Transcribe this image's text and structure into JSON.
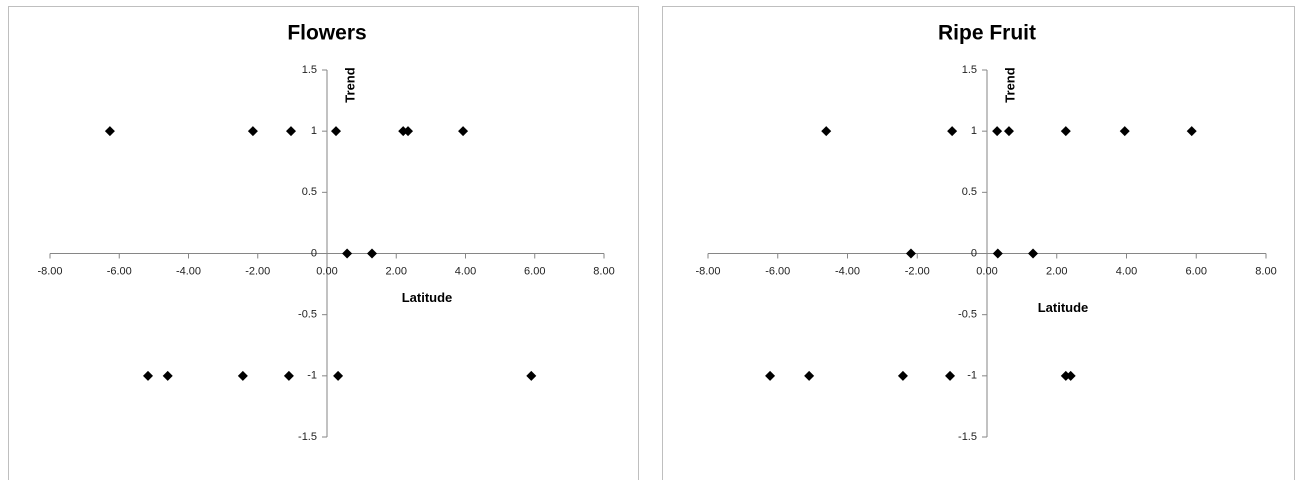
{
  "chart_data": [
    {
      "type": "scatter",
      "title": "Flowers",
      "x_label": "Latitude",
      "y_label": "Trend",
      "color": "#000000",
      "x": [
        -6.27,
        -2.14,
        -1.04,
        0.26,
        2.2,
        2.34,
        3.93,
        0.58,
        1.3,
        -5.17,
        -4.6,
        -2.43,
        -1.1,
        0.32,
        5.9
      ],
      "y": [
        1,
        1,
        1,
        1,
        1,
        1,
        1,
        0,
        0,
        -1,
        -1,
        -1,
        -1,
        -1,
        -1
      ],
      "xlim": [
        -8,
        8
      ],
      "xticks": [
        {
          "value": -8,
          "label": "-8.00"
        },
        {
          "value": -6,
          "label": "-6.00"
        },
        {
          "value": -4,
          "label": "-4.00"
        },
        {
          "value": -2,
          "label": "-2.00"
        },
        {
          "value": 0,
          "label": "0.00"
        },
        {
          "value": 2,
          "label": "2.00"
        },
        {
          "value": 4,
          "label": "4.00"
        },
        {
          "value": 6,
          "label": "6.00"
        },
        {
          "value": 8,
          "label": "8.00"
        }
      ],
      "ylim": [
        -1.5,
        1.5
      ],
      "yticks": [
        -1.5,
        -1,
        -0.5,
        0,
        0.5,
        1,
        1.5
      ],
      "grid": false
    },
    {
      "type": "scatter",
      "title": "Ripe Fruit",
      "x_label": "Latitude",
      "y_label": "Trend",
      "color": "#000000",
      "x": [
        -4.61,
        -1.0,
        0.29,
        0.63,
        2.26,
        3.95,
        5.87,
        -2.18,
        0.31,
        1.32,
        -6.22,
        -5.1,
        -2.41,
        -1.06,
        2.26,
        2.4
      ],
      "y": [
        1,
        1,
        1,
        1,
        1,
        1,
        1,
        0,
        0,
        0,
        -1,
        -1,
        -1,
        -1,
        -1,
        -1
      ],
      "xlim": [
        -8,
        8
      ],
      "xticks": [
        {
          "value": -8,
          "label": "-8.00"
        },
        {
          "value": -6,
          "label": "-6.00"
        },
        {
          "value": -4,
          "label": "-4.00"
        },
        {
          "value": -2,
          "label": "-2.00"
        },
        {
          "value": 0,
          "label": "0.00"
        },
        {
          "value": 2,
          "label": "2.00"
        },
        {
          "value": 4,
          "label": "4.00"
        },
        {
          "value": 6,
          "label": "6.00"
        },
        {
          "value": 8,
          "label": "8.00"
        }
      ],
      "ylim": [
        -1.5,
        1.5
      ],
      "yticks": [
        -1.5,
        -1,
        -0.5,
        0,
        0.5,
        1,
        1.5
      ],
      "grid": false
    }
  ]
}
